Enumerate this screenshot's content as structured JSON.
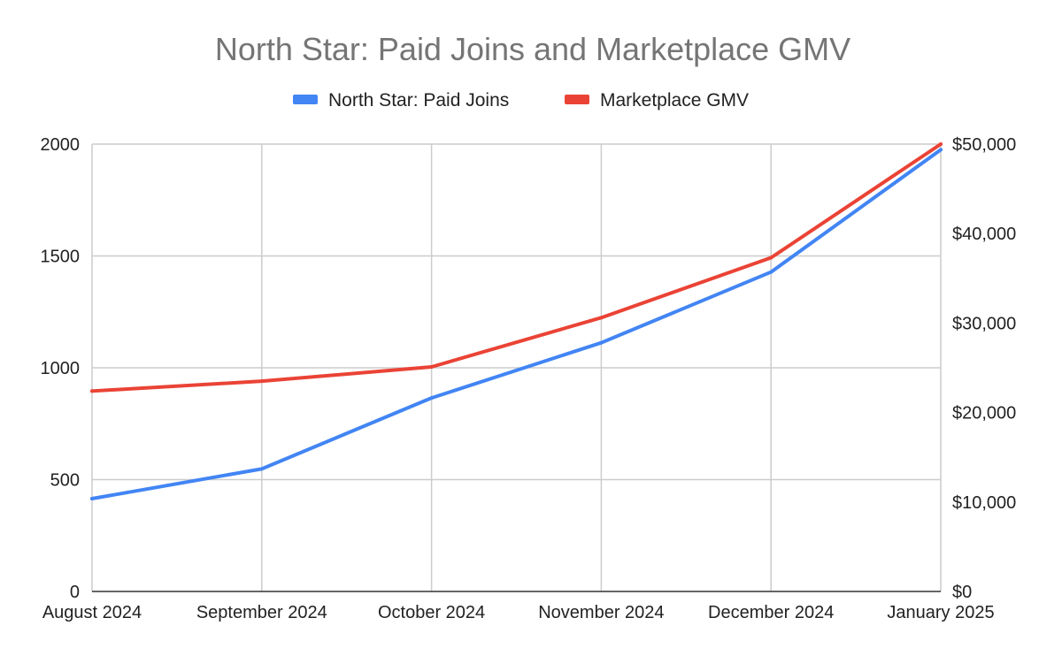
{
  "chart_data": {
    "type": "line",
    "title": "North Star: Paid Joins and Marketplace GMV",
    "categories": [
      "August 2024",
      "September 2024",
      "October 2024",
      "November 2024",
      "December 2024",
      "January 2025"
    ],
    "series": [
      {
        "name": "North Star: Paid Joins",
        "axis": "left",
        "color": "#4285f4",
        "values": [
          415,
          548,
          865,
          1112,
          1428,
          1975
        ]
      },
      {
        "name": "Marketplace GMV",
        "axis": "right",
        "color": "#ea4335",
        "values": [
          22400,
          23500,
          25100,
          30600,
          37300,
          50000
        ]
      }
    ],
    "y_left": {
      "ylim": [
        0,
        2000
      ],
      "ticks": [
        0,
        500,
        1000,
        1500,
        2000
      ],
      "tick_labels": [
        "0",
        "500",
        "1000",
        "1500",
        "2000"
      ]
    },
    "y_right": {
      "ylim": [
        0,
        50000
      ],
      "ticks": [
        0,
        10000,
        20000,
        30000,
        40000,
        50000
      ],
      "tick_labels": [
        "$0",
        "$10,000",
        "$20,000",
        "$30,000",
        "$40,000",
        "$50,000"
      ]
    },
    "grid": true,
    "legend": "top"
  }
}
